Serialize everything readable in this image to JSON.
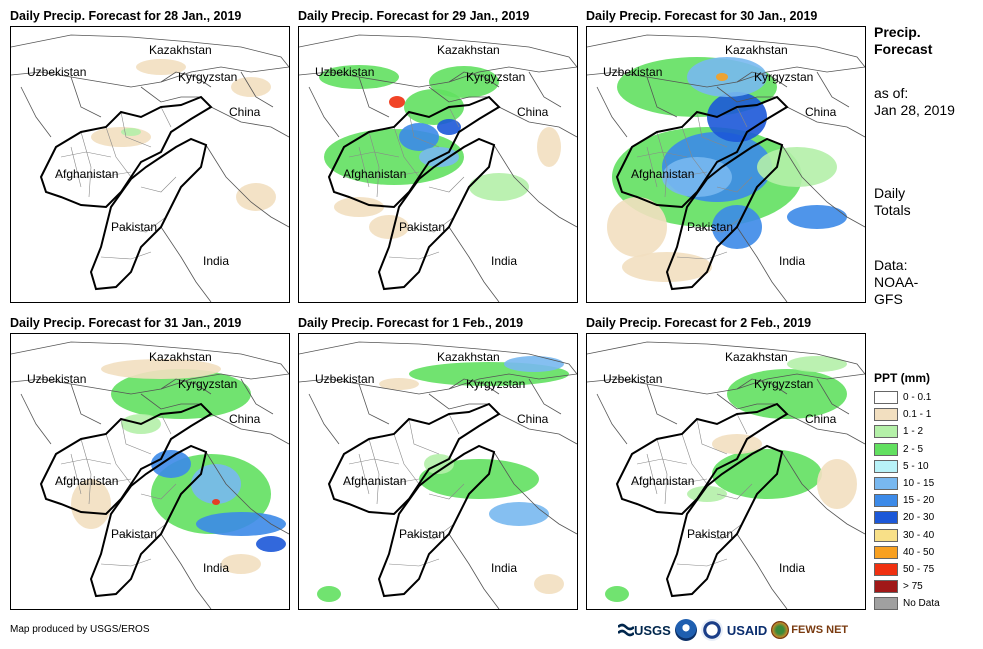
{
  "panels": [
    {
      "title": "Daily Precip. Forecast for 28 Jan., 2019",
      "precip_level": "light"
    },
    {
      "title": "Daily Precip. Forecast for 29 Jan., 2019",
      "precip_level": "moderate"
    },
    {
      "title": "Daily Precip. Forecast for 30 Jan., 2019",
      "precip_level": "heavy"
    },
    {
      "title": "Daily Precip. Forecast for 31 Jan., 2019",
      "precip_level": "moderate"
    },
    {
      "title": "Daily Precip. Forecast for 1 Feb., 2019",
      "precip_level": "light"
    },
    {
      "title": "Daily Precip. Forecast for 2 Feb., 2019",
      "precip_level": "light"
    }
  ],
  "country_labels": {
    "kazakhstan": "Kazakhstan",
    "uzbekistan": "Uzbekistan",
    "kyrgyzstan": "Kyrgyzstan",
    "china": "China",
    "afghanistan": "Afghanistan",
    "pakistan": "Pakistan",
    "india": "India"
  },
  "side": {
    "title_line1": "Precip.",
    "title_line2": "Forecast",
    "asof_line1": "as of:",
    "asof_line2": "Jan 28, 2019",
    "totals_line1": "Daily",
    "totals_line2": "Totals",
    "data_line1": "Data:",
    "data_line2": "NOAA-",
    "data_line3": "GFS"
  },
  "legend": {
    "title": "PPT (mm)",
    "items": [
      {
        "label": "0 - 0.1",
        "color": "#ffffff"
      },
      {
        "label": "0.1 - 1",
        "color": "#f2dfc0"
      },
      {
        "label": "1 - 2",
        "color": "#b4f0a8"
      },
      {
        "label": "2 - 5",
        "color": "#62e060"
      },
      {
        "label": "5 - 10",
        "color": "#b8f2f8"
      },
      {
        "label": "10 - 15",
        "color": "#78b8f0"
      },
      {
        "label": "15 - 20",
        "color": "#3c8ae8"
      },
      {
        "label": "20 - 30",
        "color": "#1c58d8"
      },
      {
        "label": "30 - 40",
        "color": "#f8e088"
      },
      {
        "label": "40 - 50",
        "color": "#f8a020"
      },
      {
        "label": "50 - 75",
        "color": "#f03010"
      },
      {
        "label": "> 75",
        "color": "#a01818"
      },
      {
        "label": "No Data",
        "color": "#a0a0a0"
      }
    ]
  },
  "credit": "Map produced by USGS/EROS",
  "logos": {
    "usgs": "USGS",
    "usaid": "USAID",
    "fews": "FEWS NET"
  }
}
